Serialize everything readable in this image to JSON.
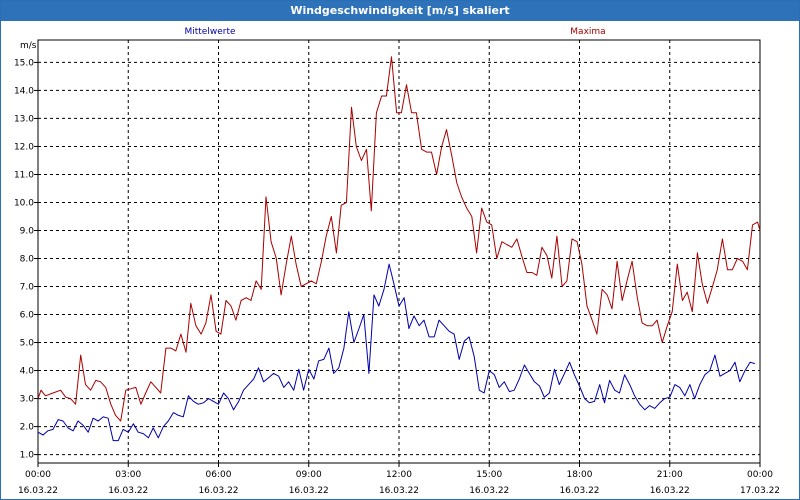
{
  "window": {
    "title": "Windgeschwindigkeit [m/s] skaliert"
  },
  "chart_data": {
    "type": "line",
    "title": "Windgeschwindigkeit [m/s] skaliert",
    "ylabel": "m/s",
    "xlabel": "",
    "ylim": [
      0.7,
      15.8
    ],
    "xlim": [
      0,
      24
    ],
    "grid": true,
    "yticks": [
      1.0,
      2.0,
      3.0,
      4.0,
      5.0,
      6.0,
      7.0,
      8.0,
      9.0,
      10.0,
      11.0,
      12.0,
      13.0,
      14.0,
      15.0
    ],
    "ytick_labels": [
      "1.0",
      "2.0",
      "3.0",
      "4.0",
      "5.0",
      "6.0",
      "7.0",
      "8.0",
      "9.0",
      "10.0",
      "11.0",
      "12.0",
      "13.0",
      "14.0",
      "15.0"
    ],
    "xticks": [
      {
        "hour": 0,
        "time": "00:00",
        "date": "16.03.22"
      },
      {
        "hour": 3,
        "time": "03:00",
        "date": "16.03.22"
      },
      {
        "hour": 6,
        "time": "06:00",
        "date": "16.03.22"
      },
      {
        "hour": 9,
        "time": "09:00",
        "date": "16.03.22"
      },
      {
        "hour": 12,
        "time": "12:00",
        "date": "16.03.22"
      },
      {
        "hour": 15,
        "time": "15:00",
        "date": "16.03.22"
      },
      {
        "hour": 18,
        "time": "18:00",
        "date": "16.03.22"
      },
      {
        "hour": 21,
        "time": "21:00",
        "date": "16.03.22"
      },
      {
        "hour": 24,
        "time": "00:00",
        "date": "17.03.22"
      }
    ],
    "colors": {
      "mittel": "#0000aa",
      "maxima": "#aa0000",
      "grid": "#000000"
    },
    "series": [
      {
        "name": "Mittelwerte",
        "legend_position": "top-left",
        "values": [
          [
            0.0,
            1.8
          ],
          [
            0.17,
            1.7
          ],
          [
            0.33,
            1.85
          ],
          [
            0.5,
            1.9
          ],
          [
            0.67,
            2.25
          ],
          [
            0.83,
            2.2
          ],
          [
            1.0,
            1.95
          ],
          [
            1.17,
            1.85
          ],
          [
            1.33,
            2.2
          ],
          [
            1.5,
            2.05
          ],
          [
            1.67,
            1.8
          ],
          [
            1.83,
            2.3
          ],
          [
            2.0,
            2.2
          ],
          [
            2.17,
            2.35
          ],
          [
            2.33,
            2.3
          ],
          [
            2.5,
            1.5
          ],
          [
            2.67,
            1.5
          ],
          [
            2.83,
            1.9
          ],
          [
            3.0,
            1.8
          ],
          [
            3.17,
            2.1
          ],
          [
            3.33,
            1.8
          ],
          [
            3.5,
            1.75
          ],
          [
            3.67,
            1.6
          ],
          [
            3.83,
            1.95
          ],
          [
            4.0,
            1.6
          ],
          [
            4.17,
            2.0
          ],
          [
            4.33,
            2.2
          ],
          [
            4.5,
            2.5
          ],
          [
            4.67,
            2.4
          ],
          [
            4.83,
            2.35
          ],
          [
            5.0,
            3.1
          ],
          [
            5.17,
            2.9
          ],
          [
            5.33,
            2.8
          ],
          [
            5.5,
            2.85
          ],
          [
            5.67,
            3.0
          ],
          [
            5.83,
            2.9
          ],
          [
            6.0,
            2.8
          ],
          [
            6.17,
            3.2
          ],
          [
            6.33,
            3.0
          ],
          [
            6.5,
            2.6
          ],
          [
            6.67,
            2.9
          ],
          [
            6.83,
            3.3
          ],
          [
            7.0,
            3.5
          ],
          [
            7.17,
            3.7
          ],
          [
            7.33,
            4.1
          ],
          [
            7.5,
            3.6
          ],
          [
            7.67,
            3.75
          ],
          [
            7.83,
            3.9
          ],
          [
            8.0,
            3.8
          ],
          [
            8.17,
            3.4
          ],
          [
            8.33,
            3.6
          ],
          [
            8.5,
            3.3
          ],
          [
            8.67,
            4.05
          ],
          [
            8.83,
            3.3
          ],
          [
            9.0,
            4.05
          ],
          [
            9.17,
            3.7
          ],
          [
            9.33,
            4.35
          ],
          [
            9.5,
            4.4
          ],
          [
            9.67,
            4.8
          ],
          [
            9.83,
            3.9
          ],
          [
            10.0,
            4.1
          ],
          [
            10.17,
            4.8
          ],
          [
            10.33,
            6.1
          ],
          [
            10.5,
            5.0
          ],
          [
            10.67,
            5.5
          ],
          [
            10.83,
            6.0
          ],
          [
            11.0,
            3.9
          ],
          [
            11.17,
            6.7
          ],
          [
            11.33,
            6.3
          ],
          [
            11.5,
            6.9
          ],
          [
            11.67,
            7.8
          ],
          [
            11.83,
            7.1
          ],
          [
            12.0,
            6.3
          ],
          [
            12.17,
            6.6
          ],
          [
            12.33,
            5.5
          ],
          [
            12.5,
            5.95
          ],
          [
            12.67,
            5.6
          ],
          [
            12.83,
            5.8
          ],
          [
            13.0,
            5.2
          ],
          [
            13.17,
            5.2
          ],
          [
            13.33,
            5.8
          ],
          [
            13.5,
            5.6
          ],
          [
            13.67,
            5.4
          ],
          [
            13.83,
            5.3
          ],
          [
            14.0,
            4.4
          ],
          [
            14.17,
            5.05
          ],
          [
            14.33,
            5.2
          ],
          [
            14.5,
            4.5
          ],
          [
            14.67,
            3.3
          ],
          [
            14.83,
            3.2
          ],
          [
            15.0,
            4.0
          ],
          [
            15.17,
            3.85
          ],
          [
            15.33,
            3.4
          ],
          [
            15.5,
            3.6
          ],
          [
            15.67,
            3.25
          ],
          [
            15.83,
            3.3
          ],
          [
            16.0,
            3.7
          ],
          [
            16.17,
            4.2
          ],
          [
            16.33,
            3.9
          ],
          [
            16.5,
            3.6
          ],
          [
            16.67,
            3.45
          ],
          [
            16.83,
            3.05
          ],
          [
            17.0,
            3.2
          ],
          [
            17.17,
            4.05
          ],
          [
            17.33,
            3.5
          ],
          [
            17.5,
            3.9
          ],
          [
            17.67,
            4.3
          ],
          [
            17.83,
            3.85
          ],
          [
            18.0,
            3.45
          ],
          [
            18.17,
            3.0
          ],
          [
            18.33,
            2.85
          ],
          [
            18.5,
            2.9
          ],
          [
            18.67,
            3.5
          ],
          [
            18.83,
            2.85
          ],
          [
            19.0,
            3.65
          ],
          [
            19.17,
            3.3
          ],
          [
            19.33,
            3.2
          ],
          [
            19.5,
            3.85
          ],
          [
            19.67,
            3.5
          ],
          [
            19.83,
            3.1
          ],
          [
            20.0,
            2.8
          ],
          [
            20.17,
            2.6
          ],
          [
            20.33,
            2.75
          ],
          [
            20.5,
            2.65
          ],
          [
            20.67,
            2.85
          ],
          [
            20.83,
            3.0
          ],
          [
            21.0,
            3.05
          ],
          [
            21.17,
            3.5
          ],
          [
            21.33,
            3.4
          ],
          [
            21.5,
            3.1
          ],
          [
            21.67,
            3.5
          ],
          [
            21.83,
            3.0
          ],
          [
            22.0,
            3.5
          ],
          [
            22.17,
            3.85
          ],
          [
            22.33,
            4.0
          ],
          [
            22.5,
            4.55
          ],
          [
            22.67,
            3.8
          ],
          [
            22.83,
            3.9
          ],
          [
            23.0,
            4.0
          ],
          [
            23.17,
            4.3
          ],
          [
            23.33,
            3.6
          ],
          [
            23.5,
            4.0
          ],
          [
            23.67,
            4.3
          ],
          [
            23.83,
            4.25
          ]
        ]
      },
      {
        "name": "Maxima",
        "legend_position": "top-right",
        "values": [
          [
            0.0,
            3.0
          ],
          [
            0.1,
            3.3
          ],
          [
            0.25,
            3.1
          ],
          [
            0.5,
            3.2
          ],
          [
            0.75,
            3.3
          ],
          [
            0.92,
            3.05
          ],
          [
            1.08,
            3.0
          ],
          [
            1.25,
            2.8
          ],
          [
            1.42,
            4.55
          ],
          [
            1.58,
            3.5
          ],
          [
            1.75,
            3.3
          ],
          [
            1.92,
            3.65
          ],
          [
            2.08,
            3.6
          ],
          [
            2.25,
            3.4
          ],
          [
            2.42,
            2.8
          ],
          [
            2.58,
            2.4
          ],
          [
            2.75,
            2.2
          ],
          [
            2.92,
            3.3
          ],
          [
            3.08,
            3.35
          ],
          [
            3.25,
            3.4
          ],
          [
            3.42,
            2.8
          ],
          [
            3.58,
            3.2
          ],
          [
            3.75,
            3.6
          ],
          [
            3.92,
            3.4
          ],
          [
            4.08,
            3.2
          ],
          [
            4.25,
            4.8
          ],
          [
            4.42,
            4.8
          ],
          [
            4.58,
            4.7
          ],
          [
            4.75,
            5.3
          ],
          [
            4.92,
            4.65
          ],
          [
            5.08,
            6.4
          ],
          [
            5.25,
            5.6
          ],
          [
            5.42,
            5.3
          ],
          [
            5.58,
            5.7
          ],
          [
            5.75,
            6.7
          ],
          [
            5.92,
            5.4
          ],
          [
            6.08,
            5.3
          ],
          [
            6.25,
            6.5
          ],
          [
            6.42,
            6.3
          ],
          [
            6.58,
            5.8
          ],
          [
            6.75,
            6.5
          ],
          [
            6.92,
            6.6
          ],
          [
            7.08,
            6.5
          ],
          [
            7.25,
            7.2
          ],
          [
            7.42,
            6.9
          ],
          [
            7.58,
            10.2
          ],
          [
            7.75,
            8.6
          ],
          [
            7.92,
            8.0
          ],
          [
            8.08,
            6.7
          ],
          [
            8.25,
            7.8
          ],
          [
            8.42,
            8.8
          ],
          [
            8.58,
            7.8
          ],
          [
            8.75,
            7.0
          ],
          [
            8.92,
            7.1
          ],
          [
            9.08,
            7.2
          ],
          [
            9.25,
            7.1
          ],
          [
            9.42,
            7.9
          ],
          [
            9.58,
            8.8
          ],
          [
            9.75,
            9.5
          ],
          [
            9.92,
            8.2
          ],
          [
            10.08,
            9.9
          ],
          [
            10.25,
            10.0
          ],
          [
            10.42,
            13.4
          ],
          [
            10.58,
            12.0
          ],
          [
            10.75,
            11.5
          ],
          [
            10.92,
            11.9
          ],
          [
            11.08,
            9.7
          ],
          [
            11.25,
            13.2
          ],
          [
            11.42,
            13.8
          ],
          [
            11.58,
            13.8
          ],
          [
            11.75,
            15.2
          ],
          [
            11.92,
            13.2
          ],
          [
            12.08,
            13.2
          ],
          [
            12.25,
            14.2
          ],
          [
            12.42,
            13.2
          ],
          [
            12.58,
            13.2
          ],
          [
            12.75,
            11.9
          ],
          [
            12.92,
            11.8
          ],
          [
            13.08,
            11.8
          ],
          [
            13.25,
            11.0
          ],
          [
            13.42,
            12.0
          ],
          [
            13.58,
            12.6
          ],
          [
            13.75,
            11.7
          ],
          [
            13.92,
            10.7
          ],
          [
            14.08,
            10.2
          ],
          [
            14.25,
            9.8
          ],
          [
            14.42,
            9.5
          ],
          [
            14.58,
            8.2
          ],
          [
            14.75,
            9.8
          ],
          [
            14.92,
            9.3
          ],
          [
            15.08,
            9.2
          ],
          [
            15.25,
            8.0
          ],
          [
            15.42,
            8.6
          ],
          [
            15.58,
            8.5
          ],
          [
            15.75,
            8.4
          ],
          [
            15.92,
            8.7
          ],
          [
            16.08,
            8.1
          ],
          [
            16.25,
            7.5
          ],
          [
            16.42,
            7.5
          ],
          [
            16.58,
            7.4
          ],
          [
            16.75,
            8.4
          ],
          [
            16.92,
            8.1
          ],
          [
            17.08,
            7.3
          ],
          [
            17.25,
            8.8
          ],
          [
            17.42,
            7.0
          ],
          [
            17.58,
            7.2
          ],
          [
            17.75,
            8.7
          ],
          [
            17.92,
            8.6
          ],
          [
            18.08,
            7.8
          ],
          [
            18.25,
            6.3
          ],
          [
            18.42,
            5.8
          ],
          [
            18.58,
            5.3
          ],
          [
            18.75,
            6.9
          ],
          [
            18.92,
            6.7
          ],
          [
            19.08,
            6.2
          ],
          [
            19.25,
            7.9
          ],
          [
            19.42,
            6.5
          ],
          [
            19.58,
            7.2
          ],
          [
            19.75,
            7.9
          ],
          [
            19.92,
            6.6
          ],
          [
            20.08,
            5.7
          ],
          [
            20.25,
            5.6
          ],
          [
            20.42,
            5.6
          ],
          [
            20.58,
            5.8
          ],
          [
            20.75,
            5.0
          ],
          [
            20.92,
            5.6
          ],
          [
            21.08,
            6.1
          ],
          [
            21.25,
            7.8
          ],
          [
            21.42,
            6.5
          ],
          [
            21.58,
            6.8
          ],
          [
            21.75,
            6.1
          ],
          [
            21.92,
            8.2
          ],
          [
            22.08,
            7.1
          ],
          [
            22.25,
            6.4
          ],
          [
            22.42,
            7.0
          ],
          [
            22.58,
            7.6
          ],
          [
            22.75,
            8.7
          ],
          [
            22.92,
            7.6
          ],
          [
            23.08,
            7.6
          ],
          [
            23.25,
            8.0
          ],
          [
            23.42,
            7.9
          ],
          [
            23.58,
            7.6
          ],
          [
            23.75,
            9.2
          ],
          [
            23.92,
            9.3
          ],
          [
            24.0,
            9.0
          ]
        ]
      }
    ]
  }
}
